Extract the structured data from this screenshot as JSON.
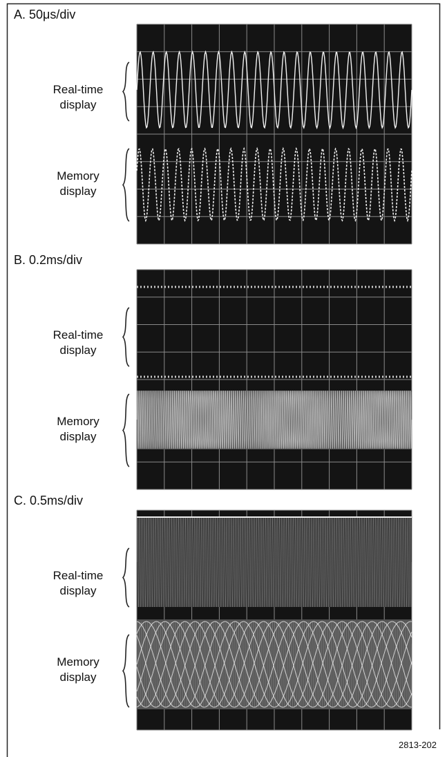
{
  "panels": [
    {
      "label": "A. 50μs/div",
      "real_time_label": [
        "Real-time",
        "display"
      ],
      "memory_label": [
        "Memory",
        "display"
      ]
    },
    {
      "label": "B. 0.2ms/div",
      "real_time_label": [
        "Real-time",
        "display"
      ],
      "memory_label": [
        "Memory",
        "display"
      ]
    },
    {
      "label": "C. 0.5ms/div",
      "real_time_label": [
        "Real-time",
        "display"
      ],
      "memory_label": [
        "Memory",
        "display"
      ]
    }
  ],
  "figure_number": "2813-202"
}
